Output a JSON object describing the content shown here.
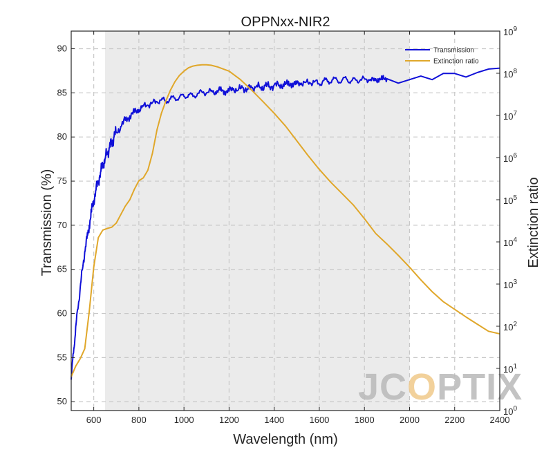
{
  "chart_data": {
    "type": "line",
    "title": "OPPNxx-NIR2",
    "xlabel": "Wavelength (nm)",
    "ylabel_left": "Transmission (%)",
    "ylabel_right": "Extinction ratio",
    "xlim": [
      500,
      2400
    ],
    "ylim_left": [
      49,
      92
    ],
    "ylim_right_log10": [
      0,
      9
    ],
    "x_ticks": [
      600,
      800,
      1000,
      1200,
      1400,
      1600,
      1800,
      2000,
      2200,
      2400
    ],
    "y_left_ticks": [
      50,
      55,
      60,
      65,
      70,
      75,
      80,
      85,
      90
    ],
    "y_right_ticks": [
      "10^0",
      "10^1",
      "10^2",
      "10^3",
      "10^4",
      "10^5",
      "10^6",
      "10^7",
      "10^8",
      "10^9"
    ],
    "grid": true,
    "legend_position": "top-right",
    "shaded_band": [
      650,
      2000
    ],
    "shaded_color": "#ebebeb",
    "series": [
      {
        "name": "Transmission",
        "axis": "left",
        "color": "#1010d8",
        "x": [
          500,
          510,
          520,
          530,
          540,
          550,
          560,
          570,
          580,
          590,
          600,
          610,
          620,
          630,
          640,
          650,
          660,
          670,
          680,
          690,
          700,
          720,
          740,
          760,
          780,
          800,
          820,
          840,
          860,
          880,
          900,
          920,
          940,
          960,
          980,
          1000,
          1020,
          1040,
          1060,
          1080,
          1100,
          1120,
          1140,
          1160,
          1180,
          1200,
          1220,
          1240,
          1260,
          1280,
          1300,
          1320,
          1340,
          1360,
          1380,
          1400,
          1420,
          1440,
          1460,
          1480,
          1500,
          1520,
          1540,
          1560,
          1580,
          1600,
          1620,
          1640,
          1660,
          1680,
          1700,
          1720,
          1740,
          1760,
          1780,
          1800,
          1820,
          1840,
          1860,
          1880,
          1900,
          1950,
          2000,
          2050,
          2100,
          2150,
          2200,
          2250,
          2300,
          2350,
          2400
        ],
        "y": [
          52.5,
          55.5,
          58.5,
          60.5,
          63,
          65,
          67,
          68.5,
          70,
          71.5,
          72.8,
          74,
          75,
          76,
          76.8,
          77.5,
          78.2,
          78.8,
          79.4,
          80,
          80.5,
          81.2,
          81.9,
          82.4,
          82.8,
          83.1,
          83.5,
          83.6,
          83.9,
          84,
          84.2,
          84.1,
          84.3,
          84.4,
          84.5,
          84.6,
          84.8,
          84.6,
          84.9,
          85.1,
          85,
          85.2,
          85.1,
          85.3,
          85.2,
          85.2,
          85.5,
          85.3,
          85.6,
          85.4,
          85.6,
          85.7,
          85.6,
          85.8,
          85.7,
          85.9,
          85.8,
          86,
          85.9,
          86.1,
          86,
          86.1,
          86.2,
          86.1,
          86.3,
          86,
          86.4,
          86.3,
          86.5,
          86.4,
          86.4,
          86.6,
          86.3,
          86.5,
          86.4,
          86.6,
          86.5,
          86.4,
          86.6,
          86.5,
          86.6,
          86.1,
          86.5,
          86.9,
          86.5,
          87.2,
          87.2,
          86.8,
          87.3,
          87.7,
          87.8
        ]
      },
      {
        "name": "Extinction ratio",
        "axis": "right",
        "color": "#e0a72a",
        "x": [
          500,
          520,
          540,
          560,
          580,
          600,
          620,
          640,
          660,
          680,
          700,
          720,
          740,
          760,
          780,
          800,
          820,
          840,
          860,
          880,
          900,
          920,
          940,
          960,
          980,
          1000,
          1020,
          1040,
          1060,
          1080,
          1100,
          1120,
          1150,
          1200,
          1250,
          1300,
          1350,
          1400,
          1450,
          1500,
          1550,
          1600,
          1650,
          1700,
          1750,
          1800,
          1850,
          1900,
          1950,
          2000,
          2050,
          2100,
          2150,
          2200,
          2250,
          2300,
          2350,
          2400
        ],
        "y_log10": [
          0.8,
          1.0,
          1.2,
          1.5,
          2.4,
          3.4,
          4.1,
          4.28,
          4.32,
          4.35,
          4.45,
          4.65,
          4.85,
          5.0,
          5.25,
          5.45,
          5.52,
          5.7,
          6.1,
          6.65,
          7.05,
          7.35,
          7.6,
          7.8,
          7.95,
          8.05,
          8.13,
          8.17,
          8.19,
          8.2,
          8.2,
          8.19,
          8.15,
          8.05,
          7.85,
          7.6,
          7.33,
          7.05,
          6.75,
          6.4,
          6.05,
          5.72,
          5.42,
          5.15,
          4.88,
          4.55,
          4.2,
          3.95,
          3.68,
          3.4,
          3.1,
          2.82,
          2.58,
          2.4,
          2.22,
          2.05,
          1.88,
          1.82
        ]
      }
    ]
  },
  "watermark": "JCOPTIX"
}
